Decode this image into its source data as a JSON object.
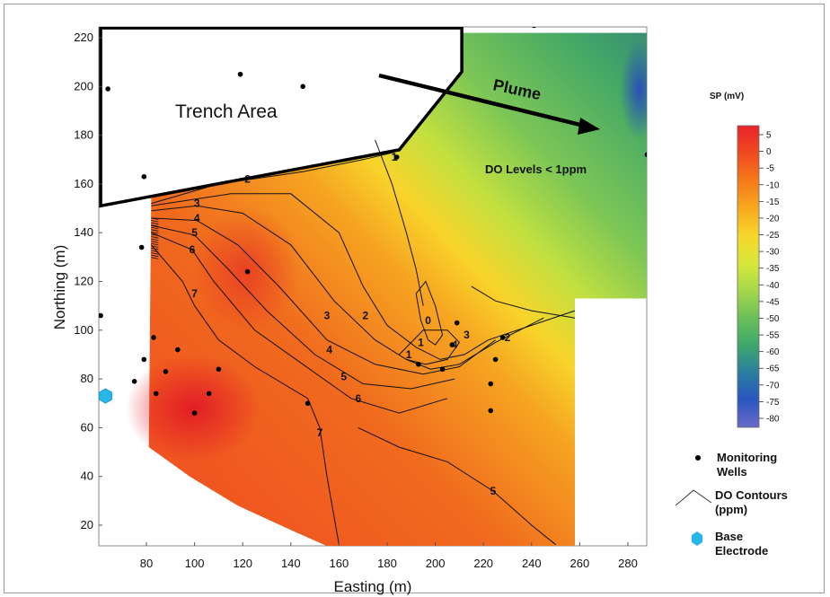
{
  "chart_data": {
    "type": "heatmap",
    "xlabel": "Easting (m)",
    "ylabel": "Northing (m)",
    "xlim": [
      60,
      290
    ],
    "ylim": [
      10,
      225
    ],
    "x_ticks": [
      80,
      100,
      120,
      140,
      160,
      180,
      200,
      220,
      240,
      260,
      280
    ],
    "y_ticks": [
      20,
      40,
      60,
      80,
      100,
      120,
      140,
      160,
      180,
      200,
      220
    ],
    "colorbar": {
      "title": "SP (mV)",
      "ticks": [
        "5",
        "0",
        "-5",
        "-10",
        "-15",
        "-20",
        "-25",
        "-30",
        "-35",
        "-40",
        "-45",
        "-50",
        "-55",
        "-60",
        "-65",
        "-70",
        "-75",
        "-80"
      ],
      "colors": [
        "#e8242a",
        "#f04a20",
        "#f57a1a",
        "#f9a81e",
        "#f7d62a",
        "#d8e83a",
        "#a6d84a",
        "#6cc05a",
        "#3ea86a",
        "#2a7ea0",
        "#2a56c0",
        "#6a6ac8"
      ]
    },
    "annotations": {
      "trench": "Trench Area",
      "plume": "Plume",
      "do_levels": "DO Levels < 1ppm"
    },
    "contour_labels": [
      {
        "text": "1",
        "x": 183,
        "y": 171
      },
      {
        "text": "2",
        "x": 122,
        "y": 162
      },
      {
        "text": "3",
        "x": 101,
        "y": 152
      },
      {
        "text": "4",
        "x": 101,
        "y": 146
      },
      {
        "text": "5",
        "x": 100,
        "y": 140
      },
      {
        "text": "6",
        "x": 99,
        "y": 133
      },
      {
        "text": "7",
        "x": 100,
        "y": 115
      },
      {
        "text": "3",
        "x": 155,
        "y": 106
      },
      {
        "text": "2",
        "x": 171,
        "y": 106
      },
      {
        "text": "4",
        "x": 156,
        "y": 92
      },
      {
        "text": "5",
        "x": 162,
        "y": 81
      },
      {
        "text": "6",
        "x": 168,
        "y": 72
      },
      {
        "text": "7",
        "x": 152,
        "y": 58
      },
      {
        "text": "0",
        "x": 197,
        "y": 104
      },
      {
        "text": "1",
        "x": 194,
        "y": 95
      },
      {
        "text": "1",
        "x": 189,
        "y": 90
      },
      {
        "text": "3",
        "x": 213,
        "y": 98
      },
      {
        "text": "4",
        "x": 208,
        "y": 94
      },
      {
        "text": "2",
        "x": 230,
        "y": 97
      },
      {
        "text": "5",
        "x": 224,
        "y": 34
      }
    ],
    "monitoring_wells": [
      [
        64,
        199
      ],
      [
        79,
        163
      ],
      [
        119,
        205
      ],
      [
        145,
        200
      ],
      [
        184,
        171
      ],
      [
        241,
        225
      ],
      [
        288,
        172
      ],
      [
        78,
        134
      ],
      [
        122,
        124
      ],
      [
        61,
        106
      ],
      [
        83,
        97
      ],
      [
        79,
        88
      ],
      [
        93,
        92
      ],
      [
        88,
        83
      ],
      [
        84,
        74
      ],
      [
        75,
        79
      ],
      [
        106,
        74
      ],
      [
        110,
        84
      ],
      [
        100,
        66
      ],
      [
        147,
        70
      ],
      [
        193,
        86
      ],
      [
        203,
        84
      ],
      [
        209,
        103
      ],
      [
        207,
        94
      ],
      [
        228,
        97
      ],
      [
        225,
        88
      ],
      [
        223,
        78
      ],
      [
        223,
        67
      ]
    ],
    "base_electrode": [
      63,
      73
    ],
    "legend": [
      {
        "label": "Monitoring Wells",
        "symbol": "dot"
      },
      {
        "label": "DO Contours (ppm)",
        "symbol": "line"
      },
      {
        "label": "Base Electrode",
        "symbol": "hexagon"
      }
    ]
  },
  "legend_text": {
    "wells_1": "Monitoring",
    "wells_2": "Wells",
    "contours_1": "DO Contours",
    "contours_2": "(ppm)",
    "base_1": "Base",
    "base_2": "Electrode"
  }
}
